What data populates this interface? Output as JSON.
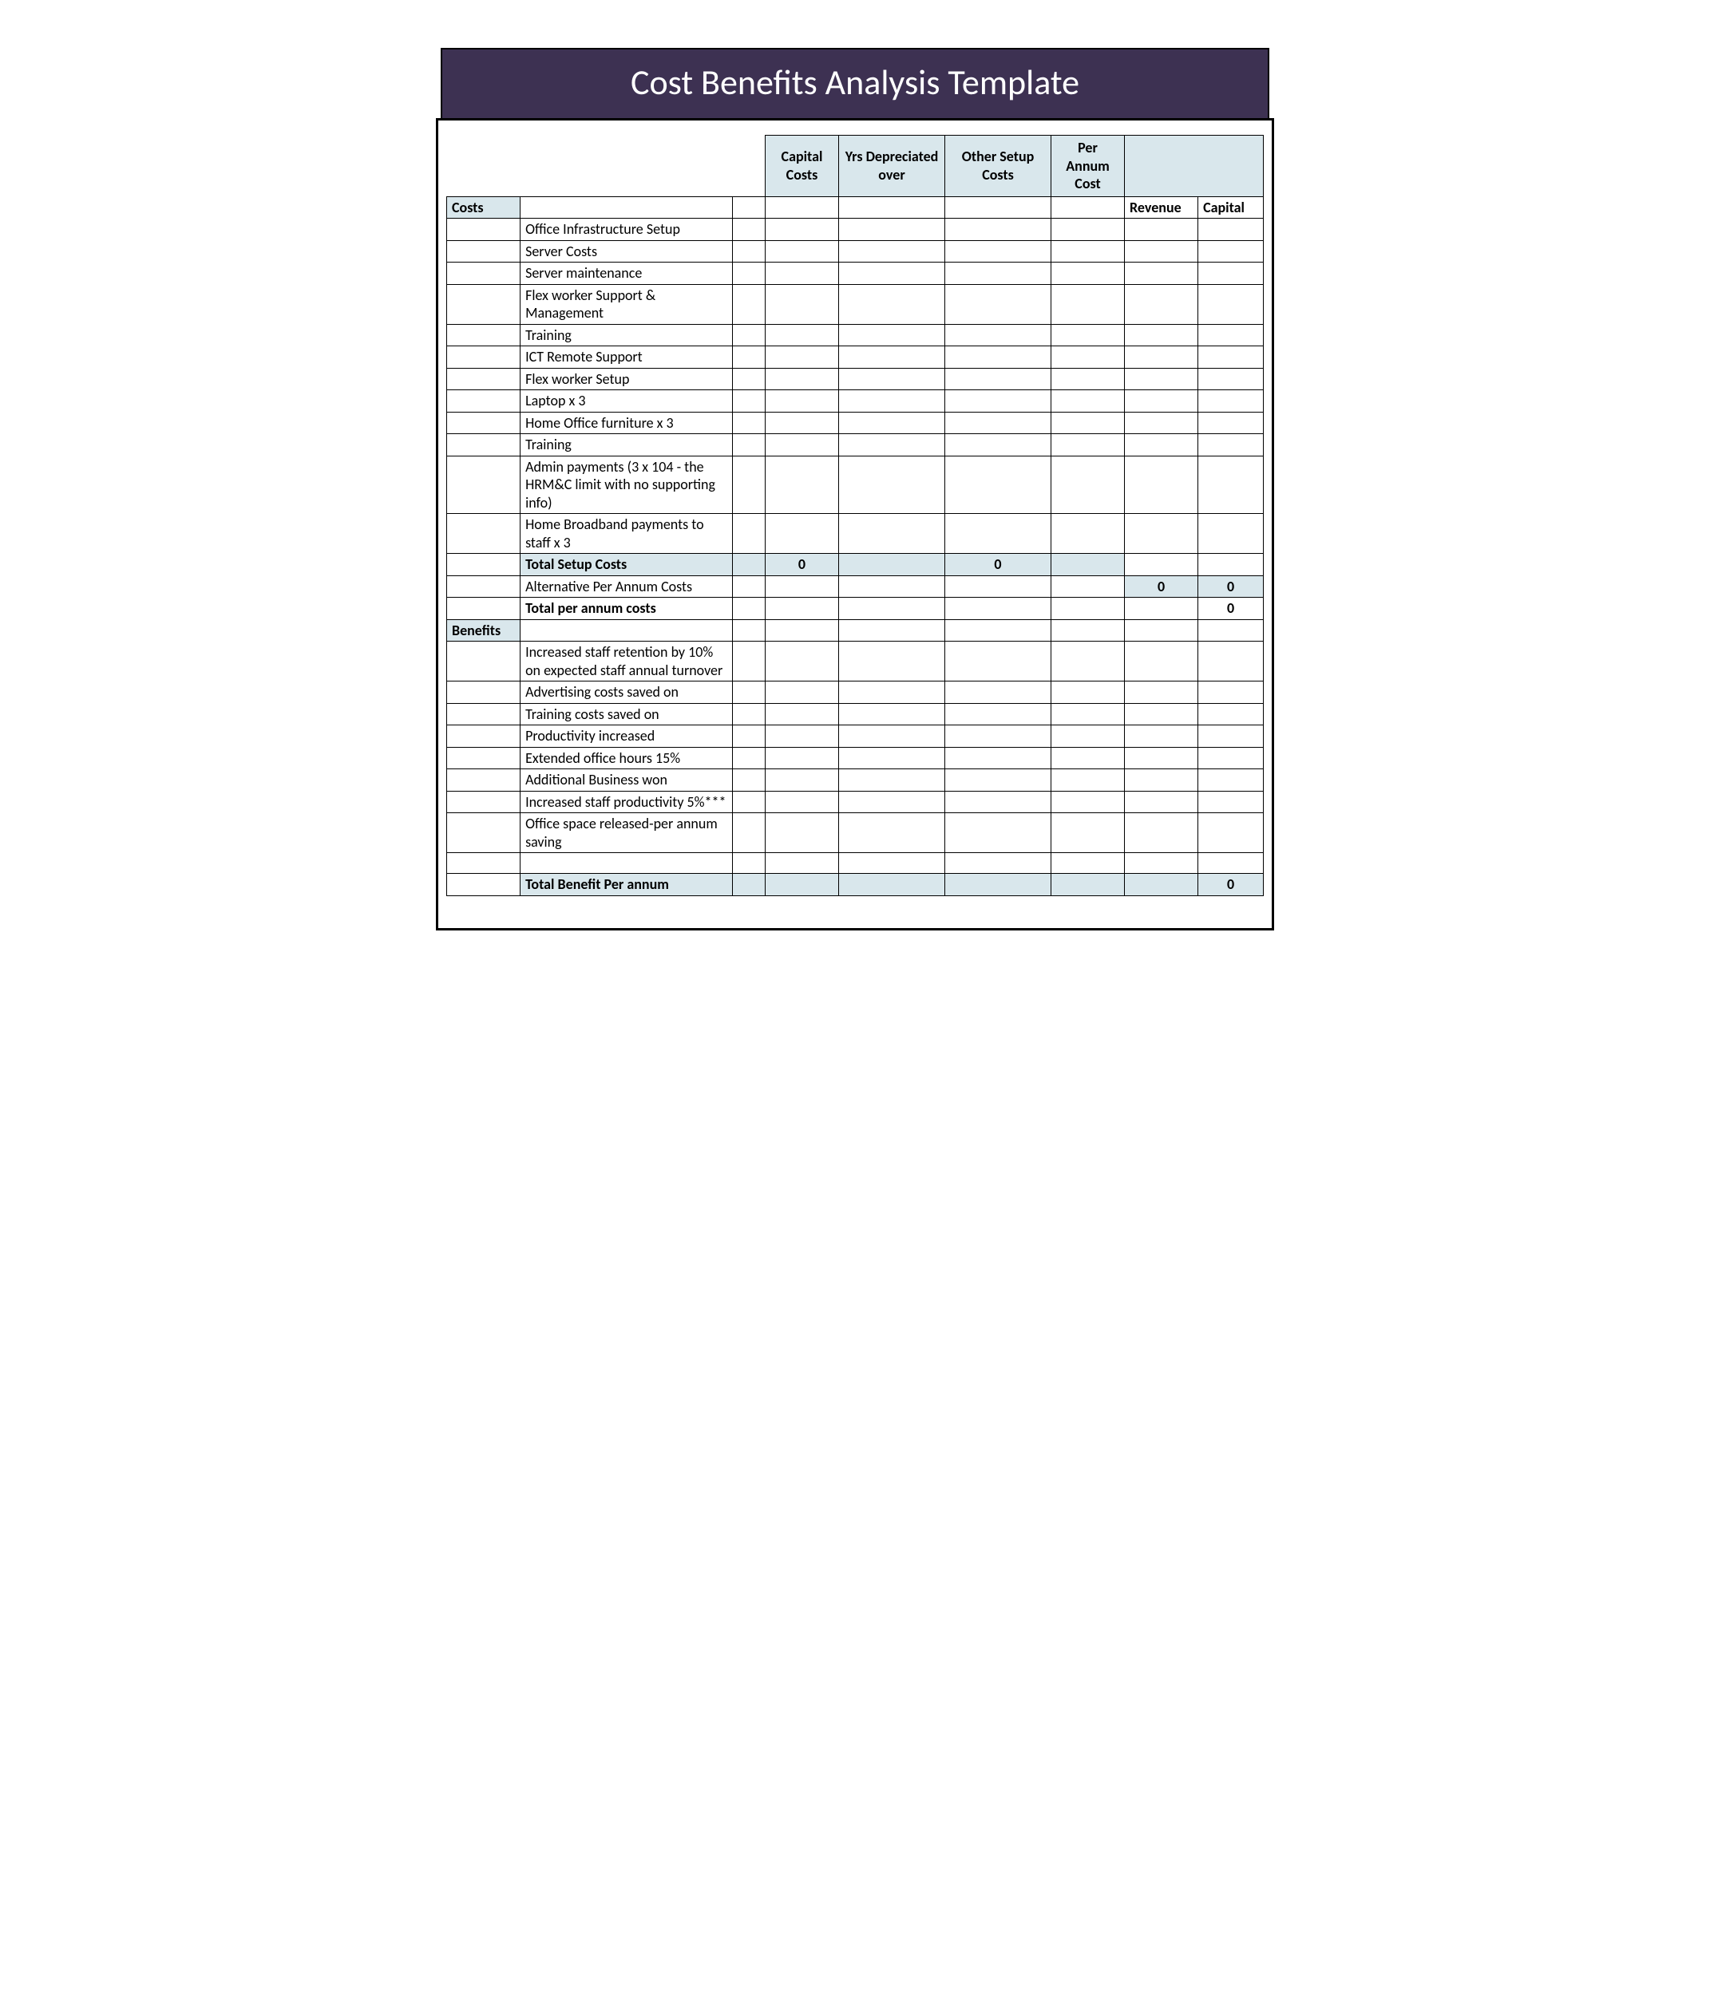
{
  "title": "Cost Benefits Analysis Template",
  "style": {
    "title_bg": "#3d3152",
    "title_fg": "#ffffff",
    "tint_bg": "#d9e7ec",
    "border_color": "#000000",
    "font_family": "Calibri",
    "title_fontsize": 44,
    "cell_fontsize": 18
  },
  "headers": {
    "capital_costs": "Capital Costs",
    "yrs_depreciated": "Yrs Depreciated over",
    "other_setup": "Other Setup Costs",
    "per_annum_cost": "Per Annum Cost",
    "revenue": "Revenue",
    "capital": "Capital"
  },
  "sections": {
    "costs_label": "Costs",
    "benefits_label": "Benefits"
  },
  "cost_items": [
    "Office Infrastructure Setup",
    "Server Costs",
    "Server maintenance",
    "Flex worker Support & Management",
    "Training",
    "ICT Remote Support",
    "Flex worker Setup",
    "Laptop x 3",
    "Home Office furniture x 3",
    "Training",
    "Admin payments (3 x 104 - the HRM&C limit with no supporting info)",
    "Home Broadband payments to staff x 3"
  ],
  "totals": {
    "total_setup_label": "Total Setup Costs",
    "total_setup_capital": "0",
    "total_setup_other": "0",
    "alt_per_annum_label": "Alternative Per Annum Costs",
    "alt_per_annum_revenue": "0",
    "alt_per_annum_capital": "0",
    "total_per_annum_label": "Total per annum costs",
    "total_per_annum_capital": "0",
    "total_benefit_label": "Total Benefit Per annum",
    "total_benefit_capital": "0"
  },
  "benefit_items": [
    "Increased staff retention by 10% on expected staff annual turnover",
    "Advertising costs saved on",
    "Training costs saved on",
    "Productivity increased",
    "Extended office hours 15%",
    "Additional Business won",
    "Increased staff productivity 5%***",
    "Office space released-per annum saving"
  ]
}
